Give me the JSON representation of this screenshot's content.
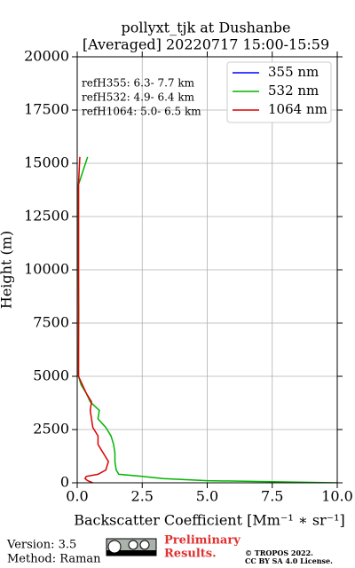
{
  "chart_data": {
    "type": "line",
    "title": [
      "pollyxt_tjk at Dushanbe",
      "[Averaged] 20220717 15:00-15:59"
    ],
    "xlabel": "Backscatter Coefficient [Mm⁻¹ ∗ sr⁻¹]",
    "ylabel": "Height (m)",
    "y": [
      0,
      100,
      200,
      300,
      400,
      600,
      1000,
      1400,
      1800,
      2200,
      2600,
      3000,
      3400,
      3800,
      4200,
      4600,
      5000,
      6000,
      8000,
      10000,
      12000,
      14000,
      15300
    ],
    "series": [
      {
        "name": "355 nm",
        "color": "#0000ff",
        "values": [
          null,
          null,
          null,
          null,
          null,
          null,
          null,
          null,
          null,
          null,
          null,
          null,
          null,
          null,
          null,
          null,
          null,
          null,
          null,
          null,
          null,
          null,
          null
        ]
      },
      {
        "name": "532 nm",
        "color": "#00b400",
        "values": [
          10,
          5,
          3.3,
          2.5,
          1.6,
          1.5,
          1.45,
          1.45,
          1.4,
          1.3,
          1.1,
          0.8,
          0.85,
          0.5,
          0.35,
          0.15,
          0.05,
          0.05,
          0.06,
          0.05,
          0.05,
          0.05,
          0.4
        ]
      },
      {
        "name": "1064 nm",
        "color": "#dc0000",
        "values": [
          0.6,
          0.4,
          0.3,
          0.35,
          0.8,
          1.1,
          1.2,
          1.0,
          0.8,
          0.8,
          0.6,
          0.55,
          0.5,
          0.55,
          0.35,
          0.2,
          0.05,
          0.05,
          0.05,
          0.05,
          0.05,
          0.05,
          0.1
        ]
      }
    ],
    "xlim": [
      0,
      10
    ],
    "ylim": [
      0,
      20000
    ],
    "xticks": [
      {
        "value": 0,
        "label": "0.0"
      },
      2.5,
      {
        "value": 5,
        "label": "5.0"
      },
      7.5,
      {
        "value": 10,
        "label": "10.0"
      }
    ],
    "yticks": [
      0,
      2500,
      5000,
      7500,
      10000,
      12500,
      15000,
      17500,
      20000
    ],
    "grid": true,
    "legend": "upper right",
    "annotations": [
      "refH355:  6.3- 7.7 km",
      "refH532:  4.9- 6.4 km",
      "refH1064:  5.0- 6.5 km"
    ],
    "footer": {
      "version": "Version: 3.5",
      "method": "Method: Raman",
      "preliminary": [
        "Preliminary",
        "Results."
      ],
      "copyright": [
        "© TROPOS 2022.",
        "CC BY SA 4.0 License."
      ]
    }
  }
}
